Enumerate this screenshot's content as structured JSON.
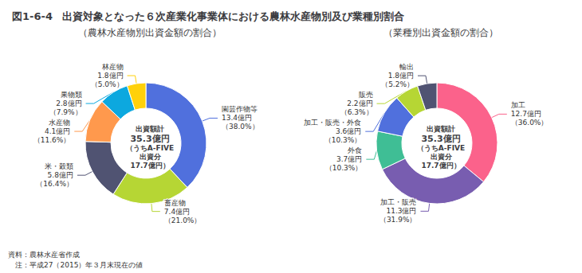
{
  "title": "出資対象となった６次産業化事業体における農林水産物別及び業種別割合",
  "annotations": [
    "図1-6-4",
    "資料：農林水産省作成",
    "　注：平成27（2015）年３月末現在の値"
  ],
  "chart_data": [
    {
      "type": "pie",
      "title": "（農林水産物別出資金額の割合）",
      "categories": [
        "園芸作物等",
        "畜産物",
        "米・穀類",
        "水産物",
        "果物類",
        "林産物"
      ],
      "values": [
        38.0,
        21.0,
        16.4,
        11.6,
        7.9,
        5.0
      ],
      "value_labels": [
        "13.4億円\n（38.0%）",
        "7.4億円\n（21.0%）",
        "5.8億円\n（16.4%）",
        "4.1億円\n（11.6%）",
        "2.8億円\n（7.9%）",
        "1.8億円\n（5.0%）"
      ],
      "data_labels": true,
      "annotations": [
        "出資額計",
        "35.3億円",
        "（うちA-FIVE",
        "出資分",
        "17.7億円）"
      ]
    },
    {
      "type": "pie",
      "title": "（業種別出資金額の割合）",
      "categories": [
        "加工",
        "加工・販売",
        "外食",
        "加工・販売・外食",
        "販売",
        "輸出"
      ],
      "values": [
        36.0,
        31.9,
        10.3,
        10.3,
        6.3,
        5.2
      ],
      "value_labels": [
        "12.7億円\n（36.0%）",
        "11.3億円\n（31.9%）",
        "3.7億円\n（10.3%）",
        "3.6億円\n（10.3%）",
        "2.2億円\n（6.3%）",
        "1.8億円\n（5.2%）"
      ],
      "data_labels": true,
      "annotations": [
        "出資額計",
        "35.3億円",
        "（うちA-FIVE",
        "出資分",
        "17.7億円）"
      ]
    }
  ]
}
